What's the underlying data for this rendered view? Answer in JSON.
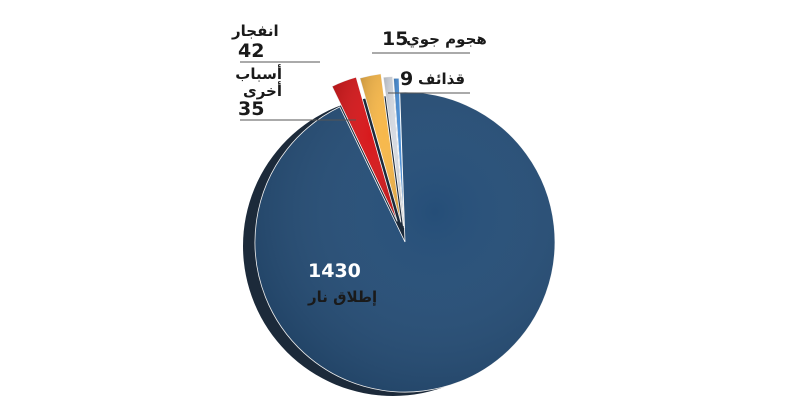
{
  "chart_data": {
    "type": "pie",
    "categories": [
      "إطلاق نار",
      "انفجار",
      "أسباب أخرى",
      "هجوم جوي",
      "قذائف"
    ],
    "values": [
      1430,
      42,
      35,
      15,
      9
    ],
    "colors": [
      "#254e78",
      "#d7191c",
      "#f7b84b",
      "#d5dae2",
      "#4a8fd6"
    ]
  }
}
